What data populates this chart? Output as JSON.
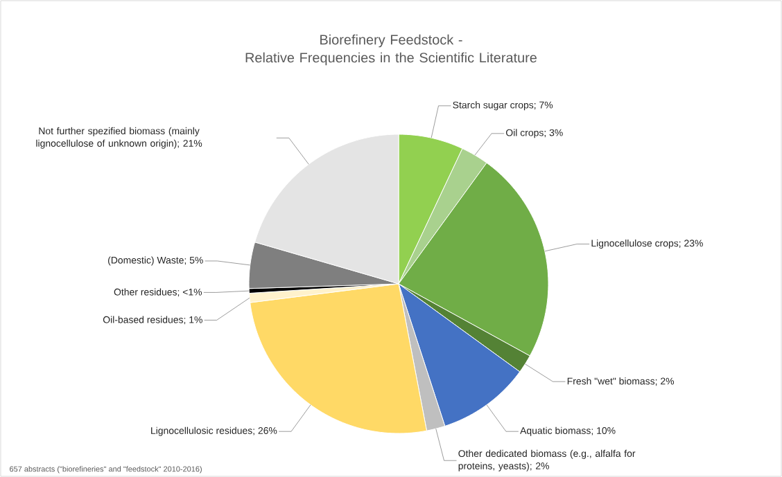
{
  "chart_data": {
    "type": "pie",
    "title": "Biorefinery Feedstock -\nRelative Frequencies in the Scientific Literature",
    "categories": [
      "Starch sugar crops; 7%",
      "Oil crops; 3%",
      "Lignocellulose crops; 23%",
      "Fresh \"wet\" biomass; 2%",
      "Aquatic biomass; 10%",
      "Other dedicated biomass (e.g., alfalfa for proteins, yeasts); 2%",
      "Lignocellulosic residues; 26%",
      "Oil-based residues; 1%",
      "Other residues; <1%",
      "(Domestic) Waste; 5%",
      "Not further spezified biomass (mainly lignocellulose of unknown origin); 21%"
    ],
    "values": [
      7,
      3,
      23,
      2,
      10,
      2,
      26,
      1,
      0.5,
      5,
      20.5
    ],
    "colors": [
      "#92d050",
      "#a9d18e",
      "#70ad47",
      "#548235",
      "#4472c4",
      "#bfbfbf",
      "#ffd966",
      "#fff2cc",
      "#000000",
      "#7f7f7f",
      "#e4e4e4"
    ],
    "annotations": [
      "657 abstracts (\"biorefineries\" and \"feedstock\" 2010-2016)"
    ]
  }
}
